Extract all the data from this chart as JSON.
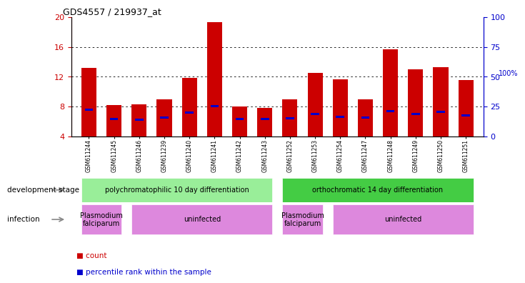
{
  "title": "GDS4557 / 219937_at",
  "samples": [
    "GSM611244",
    "GSM611245",
    "GSM611246",
    "GSM611239",
    "GSM611240",
    "GSM611241",
    "GSM611242",
    "GSM611243",
    "GSM611252",
    "GSM611253",
    "GSM611254",
    "GSM611247",
    "GSM611248",
    "GSM611249",
    "GSM611250",
    "GSM611251"
  ],
  "count_values": [
    13.2,
    8.2,
    8.3,
    9.0,
    11.8,
    19.3,
    8.0,
    7.8,
    9.0,
    12.5,
    11.7,
    9.0,
    15.7,
    13.0,
    13.3,
    11.6
  ],
  "percentile_values": [
    7.6,
    6.3,
    6.2,
    6.5,
    7.2,
    8.1,
    6.3,
    6.3,
    6.4,
    7.0,
    6.6,
    6.5,
    7.4,
    7.0,
    7.3,
    6.8
  ],
  "ylim_left": [
    4,
    20
  ],
  "yticks_left": [
    4,
    8,
    12,
    16,
    20
  ],
  "yticks_right": [
    0,
    25,
    50,
    75,
    100
  ],
  "bar_color": "#cc0000",
  "percentile_color": "#0000cc",
  "background_color": "#ffffff",
  "tick_label_bg": "#cccccc",
  "dev_stage_groups": [
    {
      "label": "polychromatophilic 10 day differentiation",
      "start": 0,
      "end": 7,
      "color": "#99ee99"
    },
    {
      "label": "orthochromatic 14 day differentiation",
      "start": 8,
      "end": 15,
      "color": "#44cc44"
    }
  ],
  "infection_groups": [
    {
      "label": "Plasmodium\nfalciparum",
      "start": 0,
      "end": 1,
      "color": "#dd88dd"
    },
    {
      "label": "uninfected",
      "start": 2,
      "end": 7,
      "color": "#dd88dd"
    },
    {
      "label": "Plasmodium\nfalciparum",
      "start": 8,
      "end": 9,
      "color": "#dd88dd"
    },
    {
      "label": "uninfected",
      "start": 10,
      "end": 15,
      "color": "#dd88dd"
    }
  ],
  "left_axis_color": "#cc0000",
  "right_axis_color": "#0000cc",
  "left_label": "development stage",
  "infection_label": "infection",
  "legend_count": "count",
  "legend_pct": "percentile rank within the sample"
}
